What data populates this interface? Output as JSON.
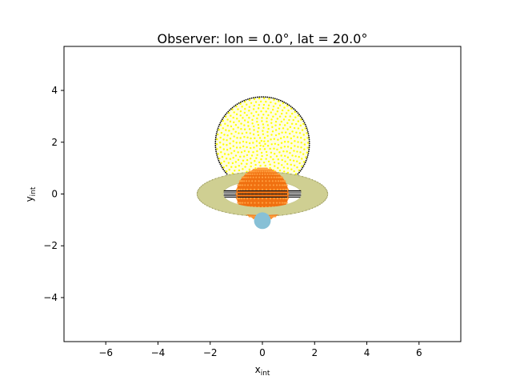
{
  "chart_data": {
    "type": "scatter",
    "title": "Observer: lon = 0.0$^\\circ$, lat = 20.0$^\\circ$",
    "title_display": "Observer: lon = 0.0°, lat = 20.0°",
    "xlabel_main": "x",
    "xlabel_sub": "int",
    "ylabel_main": "y",
    "ylabel_sub": "int",
    "xlim": [
      -7.6,
      7.6
    ],
    "ylim": [
      -5.7,
      5.7
    ],
    "xticks": [
      -6,
      -4,
      -2,
      0,
      2,
      4,
      6
    ],
    "yticks": [
      -4,
      -2,
      0,
      2,
      4
    ],
    "grid": false,
    "elements": [
      {
        "name": "star",
        "center": [
          0.0,
          1.95
        ],
        "radius": 1.8,
        "color": "#ffff00",
        "edge": "#000000"
      },
      {
        "name": "ring",
        "center": [
          0.0,
          0.0
        ],
        "outer_radius": 2.5,
        "inner_radius": 1.5,
        "color": "#cfcf92"
      },
      {
        "name": "planet",
        "center": [
          0.0,
          0.0
        ],
        "radius": 1.0,
        "color": "#ff7f0e"
      },
      {
        "name": "moon",
        "center": [
          0.0,
          -1.03
        ],
        "radius": 0.32,
        "color": "#87c0d6"
      }
    ],
    "observer_lat_deg": 20.0,
    "observer_lon_deg": 0.0
  }
}
